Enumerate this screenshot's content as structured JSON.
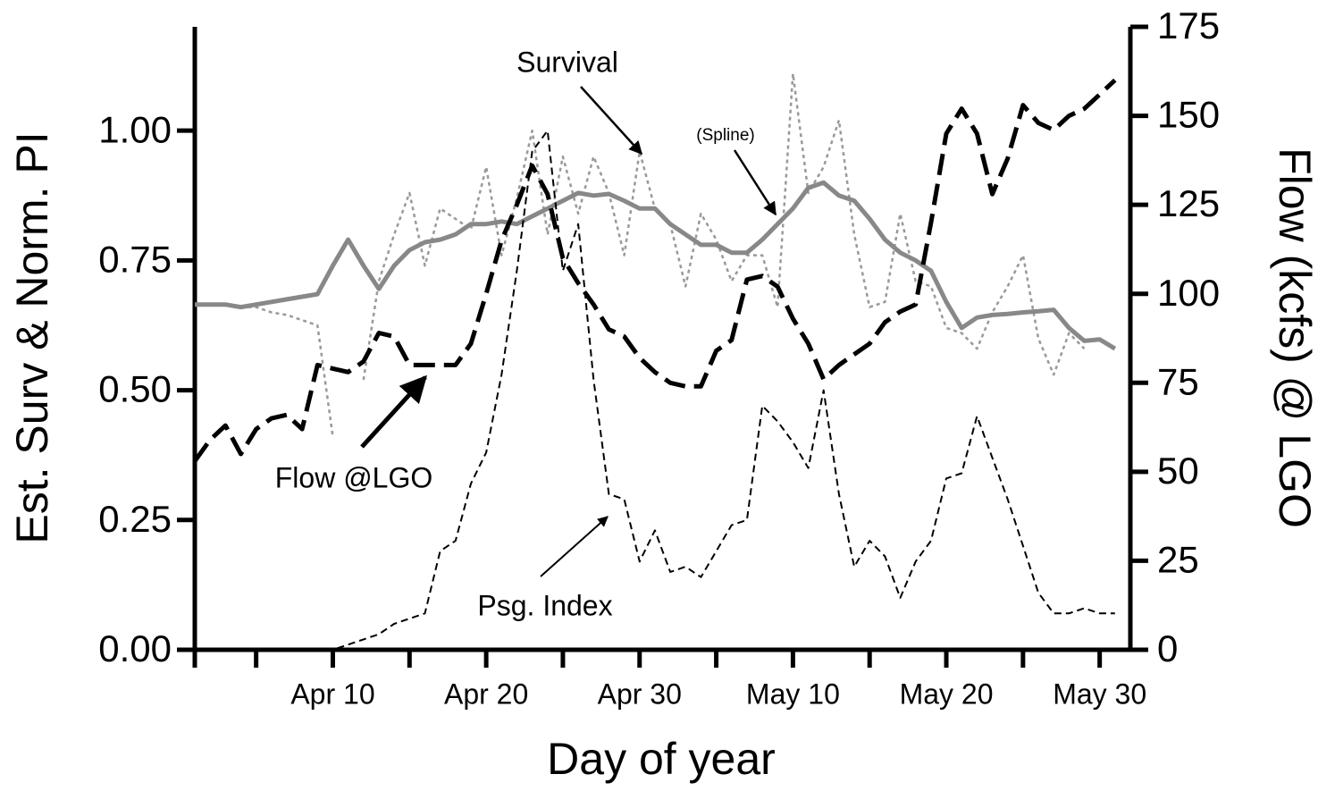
{
  "chart_data": {
    "type": "line",
    "xlabel": "Day of year",
    "ylabel": "Est.  Surv & Norm.  PI",
    "y2label": "Flow (kcfs) @ LGO",
    "x": [
      91,
      92,
      93,
      94,
      95,
      96,
      97,
      98,
      99,
      100,
      101,
      102,
      103,
      104,
      105,
      106,
      107,
      108,
      109,
      110,
      111,
      112,
      113,
      114,
      115,
      116,
      117,
      118,
      119,
      120,
      121,
      122,
      123,
      124,
      125,
      126,
      127,
      128,
      129,
      130,
      131,
      132,
      133,
      134,
      135,
      136,
      137,
      138,
      139,
      140,
      141,
      142,
      143,
      144,
      145,
      146,
      147,
      148,
      149,
      150,
      151
    ],
    "xlim": [
      91,
      152
    ],
    "xticks": [
      {
        "value": 100,
        "label": "Apr 10"
      },
      {
        "value": 110,
        "label": "Apr 20"
      },
      {
        "value": 120,
        "label": "Apr 30"
      },
      {
        "value": 130,
        "label": "May 10"
      },
      {
        "value": 140,
        "label": "May 20"
      },
      {
        "value": 150,
        "label": "May 30"
      }
    ],
    "xminorticks": [
      95,
      105,
      115,
      125,
      135,
      145
    ],
    "ylim": [
      0,
      1.2
    ],
    "yticks": [
      {
        "value": 0,
        "label": "0.00"
      },
      {
        "value": 0.25,
        "label": "0.25"
      },
      {
        "value": 0.5,
        "label": "0.50"
      },
      {
        "value": 0.75,
        "label": "0.75"
      },
      {
        "value": 1,
        "label": "1.00"
      }
    ],
    "y2lim": [
      0,
      175
    ],
    "y2ticks": [
      0,
      25,
      50,
      75,
      100,
      125,
      150,
      175
    ],
    "series": [
      {
        "name": "Survival",
        "color": "#999999",
        "linestyle": "dotted",
        "values": [
          null,
          null,
          null,
          0.66,
          0.66,
          0.65,
          0.645,
          0.635,
          0.625,
          0.41,
          null,
          0.52,
          0.71,
          0.8,
          0.88,
          0.74,
          0.85,
          0.83,
          0.81,
          0.93,
          0.76,
          0.87,
          1.0,
          0.8,
          0.95,
          0.84,
          0.95,
          0.88,
          0.76,
          0.96,
          0.85,
          0.82,
          0.7,
          0.84,
          0.79,
          0.71,
          0.76,
          0.76,
          0.66,
          1.11,
          0.88,
          0.93,
          1.02,
          0.8,
          0.66,
          0.67,
          0.84,
          0.71,
          0.7,
          0.62,
          0.61,
          0.58,
          0.65,
          0.7,
          0.76,
          0.6,
          0.53,
          0.61,
          0.58,
          null,
          null
        ]
      },
      {
        "name": "(Spline)",
        "color": "#888888",
        "linestyle": "solid",
        "values": [
          0.665,
          0.665,
          0.665,
          0.66,
          0.665,
          0.67,
          0.675,
          0.68,
          0.685,
          0.74,
          0.79,
          0.74,
          0.695,
          0.74,
          0.77,
          0.785,
          0.79,
          0.8,
          0.82,
          0.82,
          0.825,
          0.82,
          0.835,
          0.85,
          0.865,
          0.88,
          0.875,
          0.878,
          0.865,
          0.85,
          0.85,
          0.82,
          0.8,
          0.78,
          0.78,
          0.765,
          0.765,
          0.79,
          0.82,
          0.85,
          0.89,
          0.9,
          0.875,
          0.865,
          0.83,
          0.79,
          0.765,
          0.75,
          0.73,
          0.67,
          0.62,
          0.64,
          0.645,
          0.647,
          0.65,
          0.652,
          0.655,
          0.62,
          0.595,
          0.598,
          0.58
        ]
      },
      {
        "name": "Flow @LGO",
        "color": "#000000",
        "linestyle": "long-dash",
        "axis": "y2",
        "values": [
          53,
          59,
          63,
          55,
          62,
          65,
          66,
          62,
          80,
          79,
          78,
          81,
          89,
          88,
          80,
          80,
          80,
          80,
          86,
          100,
          115,
          125,
          136,
          128,
          110,
          103,
          97,
          90,
          88,
          82,
          78,
          75,
          74,
          74,
          84,
          87,
          104,
          105,
          102,
          93,
          86,
          76,
          80,
          83,
          86,
          92,
          95,
          97,
          120,
          145,
          152,
          145,
          128,
          138,
          153,
          148,
          146,
          150,
          152,
          156,
          160
        ]
      },
      {
        "name": "Psg. Index",
        "color": "#000000",
        "linestyle": "short-dash",
        "values": [
          null,
          null,
          null,
          null,
          0,
          0,
          0,
          0,
          0,
          0,
          0.01,
          0.02,
          0.03,
          0.05,
          0.06,
          0.07,
          0.19,
          0.21,
          0.32,
          0.38,
          0.53,
          0.73,
          0.96,
          1.0,
          0.73,
          0.82,
          0.52,
          0.3,
          0.29,
          0.17,
          0.23,
          0.15,
          0.16,
          0.14,
          0.19,
          0.24,
          0.25,
          0.47,
          0.44,
          0.4,
          0.35,
          0.5,
          0.3,
          0.16,
          0.21,
          0.18,
          0.1,
          0.17,
          0.21,
          0.33,
          0.34,
          0.45,
          0.37,
          0.29,
          0.2,
          0.11,
          0.07,
          0.07,
          0.08,
          0.07,
          0.07
        ]
      }
    ]
  }
}
